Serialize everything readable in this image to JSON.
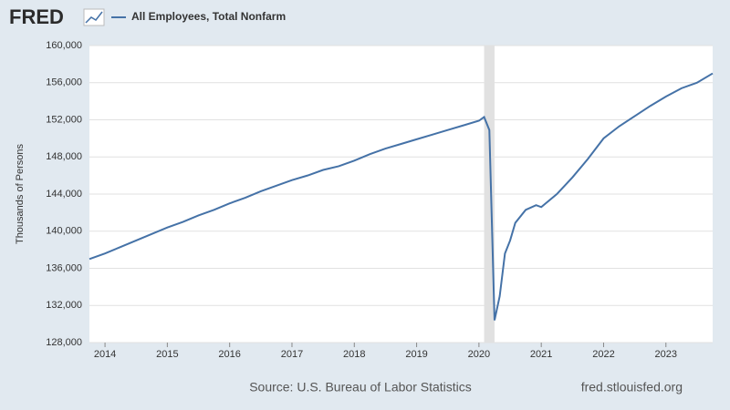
{
  "chart_data": {
    "type": "line",
    "logo": "FRED",
    "y_label": "Thousands of Persons",
    "source": "Source: U.S. Bureau of Labor Statistics",
    "site": "fred.stlouisfed.org",
    "x": [
      2013.75,
      2014.0,
      2014.25,
      2014.5,
      2014.75,
      2015.0,
      2015.25,
      2015.5,
      2015.75,
      2016.0,
      2016.25,
      2016.5,
      2016.75,
      2017.0,
      2017.25,
      2017.5,
      2017.75,
      2018.0,
      2018.25,
      2018.5,
      2018.75,
      2019.0,
      2019.25,
      2019.5,
      2019.75,
      2020.0,
      2020.083,
      2020.167,
      2020.25,
      2020.333,
      2020.417,
      2020.5,
      2020.583,
      2020.75,
      2020.917,
      2021.0,
      2021.25,
      2021.5,
      2021.75,
      2022.0,
      2022.25,
      2022.5,
      2022.75,
      2023.0,
      2023.25,
      2023.5,
      2023.75
    ],
    "series": [
      {
        "name": "All Employees, Total Nonfarm",
        "color": "#4572a7",
        "values": [
          137000,
          137600,
          138300,
          139000,
          139700,
          140400,
          141000,
          141700,
          142300,
          143000,
          143600,
          144300,
          144900,
          145500,
          146000,
          146600,
          147000,
          147600,
          148300,
          148900,
          149400,
          149900,
          150400,
          150900,
          151400,
          151900,
          152300,
          150900,
          130400,
          133000,
          137600,
          139000,
          140900,
          142300,
          142800,
          142600,
          144000,
          145800,
          147800,
          150000,
          151300,
          152400,
          153500,
          154500,
          155400,
          156000,
          157000
        ]
      }
    ],
    "recessions": [
      [
        2020.083,
        2020.25
      ]
    ],
    "xlim": [
      2013.75,
      2023.75
    ],
    "xticks": [
      2014,
      2015,
      2016,
      2017,
      2018,
      2019,
      2020,
      2021,
      2022,
      2023
    ],
    "ylim": [
      128000,
      160000
    ],
    "yticks": [
      {
        "value": 128000,
        "label": "128,000"
      },
      {
        "value": 132000,
        "label": "132,000"
      },
      {
        "value": 136000,
        "label": "136,000"
      },
      {
        "value": 140000,
        "label": "140,000"
      },
      {
        "value": 144000,
        "label": "144,000"
      },
      {
        "value": 148000,
        "label": "148,000"
      },
      {
        "value": 152000,
        "label": "152,000"
      },
      {
        "value": 156000,
        "label": "156,000"
      },
      {
        "value": 160000,
        "label": "160,000"
      }
    ],
    "grid": true
  }
}
